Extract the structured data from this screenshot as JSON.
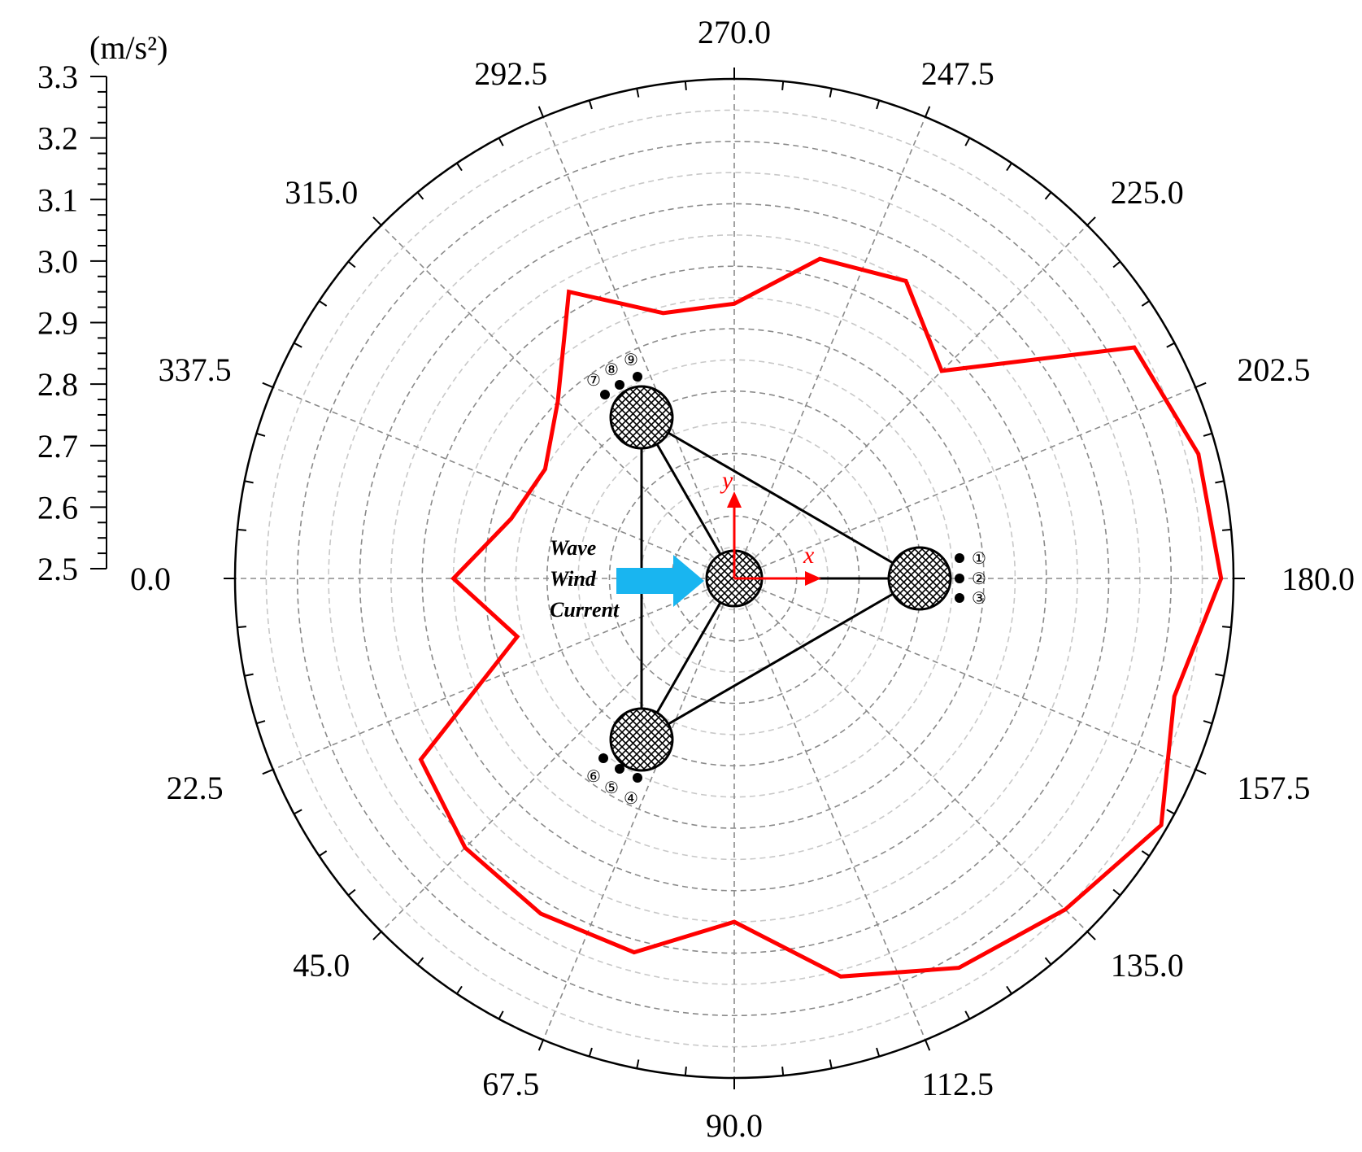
{
  "chart_data": {
    "type": "polar-line",
    "unit": "(m/s²)",
    "r_ticks": [
      "2.5",
      "2.6",
      "2.7",
      "2.8",
      "2.9",
      "3.0",
      "3.1",
      "3.2",
      "3.3"
    ],
    "rlim": [
      2.5,
      3.3
    ],
    "angle_tick_labels": [
      "0.0",
      "22.5",
      "45.0",
      "67.5",
      "90.0",
      "112.5",
      "135.0",
      "157.5",
      "180.0",
      "202.5",
      "225.0",
      "247.5",
      "270.0",
      "292.5",
      "315.0",
      "337.5"
    ],
    "grid": true,
    "series": [
      {
        "color": "#ff0000",
        "angles": [
          0,
          15,
          30,
          45,
          60,
          75,
          90,
          105,
          120,
          135,
          150,
          165,
          180,
          195,
          210,
          225,
          240,
          255,
          270,
          285,
          300,
          315,
          330,
          345
        ],
        "values": [
          2.95,
          2.86,
          3.08,
          3.11,
          3.12,
          3.12,
          3.05,
          3.16,
          3.22,
          3.25,
          3.29,
          3.23,
          3.28,
          3.27,
          3.24,
          2.97,
          3.05,
          3.03,
          2.94,
          2.94,
          3.03,
          2.9,
          2.85,
          2.87
        ]
      }
    ]
  },
  "flow": {
    "lines": [
      "Wave",
      "Wind",
      "Current"
    ],
    "arrow_color": "#19b5f0"
  },
  "axes_overlay": {
    "x_label": "x",
    "y_label": "y",
    "color": "#ff0000"
  },
  "sensor_labels": [
    "①",
    "②",
    "③",
    "④",
    "⑤",
    "⑥",
    "⑦",
    "⑧",
    "⑨"
  ]
}
